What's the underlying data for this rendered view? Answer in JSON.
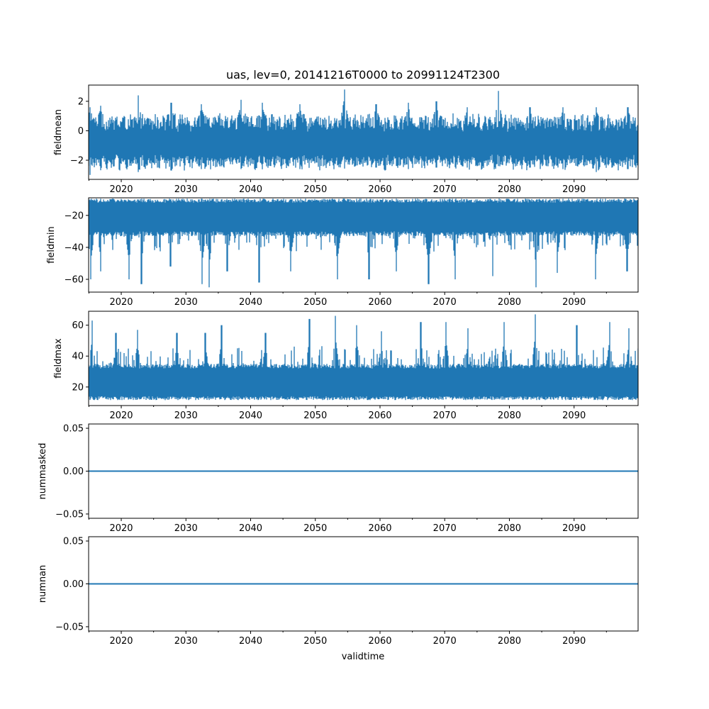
{
  "chart_data": {
    "type": "line",
    "title": "uas, lev=0, 20141216T0000 to 20991124T2300",
    "xlabel": "validtime",
    "series_color": "#1f77b4",
    "x_range": [
      "2014-12-16",
      "2099-11-24"
    ],
    "x_tick_labels": [
      "2020",
      "2030",
      "2040",
      "2050",
      "2060",
      "2070",
      "2080",
      "2090"
    ],
    "panels": [
      {
        "ylabel": "fieldmean",
        "ylim": [
          -3.3,
          3.1
        ],
        "y_ticks": [
          -2,
          0,
          2
        ],
        "y_tick_labels": [
          "−2",
          "0",
          "2"
        ],
        "band": [
          -2.4,
          0.8
        ],
        "seasonal_peaks": [
          {
            "x": 2015.2,
            "y": 1.6,
            "min": -3.0
          },
          {
            "x": 2016.8,
            "y": 1.7,
            "min": -2.4
          },
          {
            "x": 2022.6,
            "y": 2.4,
            "min": -2.8
          },
          {
            "x": 2027.7,
            "y": 1.9,
            "min": -2.7
          },
          {
            "x": 2032.4,
            "y": 1.8,
            "min": -2.6
          },
          {
            "x": 2038.5,
            "y": 2.1,
            "min": -2.6
          },
          {
            "x": 2041.8,
            "y": 1.9,
            "min": -2.6
          },
          {
            "x": 2047.6,
            "y": 1.8,
            "min": -2.6
          },
          {
            "x": 2054.5,
            "y": 2.8,
            "min": -2.4
          },
          {
            "x": 2059.4,
            "y": 1.8,
            "min": -2.5
          },
          {
            "x": 2064.4,
            "y": 1.9,
            "min": -2.6
          },
          {
            "x": 2068.7,
            "y": 2.0,
            "min": -2.5
          },
          {
            "x": 2073.5,
            "y": 1.6,
            "min": -2.5
          },
          {
            "x": 2078.3,
            "y": 2.7,
            "min": -2.4
          },
          {
            "x": 2083.2,
            "y": 1.6,
            "min": -2.5
          },
          {
            "x": 2088.3,
            "y": 1.6,
            "min": -2.6
          },
          {
            "x": 2093.4,
            "y": 1.6,
            "min": -2.8
          },
          {
            "x": 2098.3,
            "y": 1.6,
            "min": -2.6
          }
        ]
      },
      {
        "ylabel": "fieldmin",
        "ylim": [
          -68,
          -9
        ],
        "y_ticks": [
          -60,
          -40,
          -20
        ],
        "y_tick_labels": [
          "−60",
          "−40",
          "−20"
        ],
        "band": [
          -30,
          -12
        ],
        "extremes": [
          {
            "x": 2015.3,
            "y": -60
          },
          {
            "x": 2016.8,
            "y": -55
          },
          {
            "x": 2021.2,
            "y": -60
          },
          {
            "x": 2023.1,
            "y": -63
          },
          {
            "x": 2027.6,
            "y": -52
          },
          {
            "x": 2032.5,
            "y": -63
          },
          {
            "x": 2033.6,
            "y": -65
          },
          {
            "x": 2036.4,
            "y": -55
          },
          {
            "x": 2041.3,
            "y": -62
          },
          {
            "x": 2046.2,
            "y": -55
          },
          {
            "x": 2053.4,
            "y": -60
          },
          {
            "x": 2058.3,
            "y": -60
          },
          {
            "x": 2062.5,
            "y": -55
          },
          {
            "x": 2067.5,
            "y": -63
          },
          {
            "x": 2071.6,
            "y": -60
          },
          {
            "x": 2077.4,
            "y": -58
          },
          {
            "x": 2084.1,
            "y": -65
          },
          {
            "x": 2087.4,
            "y": -56
          },
          {
            "x": 2093.3,
            "y": -60
          },
          {
            "x": 2098.2,
            "y": -55
          }
        ]
      },
      {
        "ylabel": "fieldmax",
        "ylim": [
          8,
          69
        ],
        "y_ticks": [
          20,
          40,
          60
        ],
        "y_tick_labels": [
          "20",
          "40",
          "60"
        ],
        "band": [
          14,
          32
        ],
        "extremes": [
          {
            "x": 2015.5,
            "y": 63
          },
          {
            "x": 2019.2,
            "y": 55
          },
          {
            "x": 2022.5,
            "y": 57
          },
          {
            "x": 2028.6,
            "y": 55
          },
          {
            "x": 2033.0,
            "y": 55
          },
          {
            "x": 2035.5,
            "y": 60
          },
          {
            "x": 2042.3,
            "y": 55
          },
          {
            "x": 2049.1,
            "y": 64
          },
          {
            "x": 2053.1,
            "y": 66
          },
          {
            "x": 2056.4,
            "y": 60
          },
          {
            "x": 2060.2,
            "y": 56
          },
          {
            "x": 2066.3,
            "y": 62
          },
          {
            "x": 2070.2,
            "y": 62
          },
          {
            "x": 2073.6,
            "y": 58
          },
          {
            "x": 2079.2,
            "y": 62
          },
          {
            "x": 2084.0,
            "y": 67
          },
          {
            "x": 2090.4,
            "y": 60
          },
          {
            "x": 2095.5,
            "y": 62
          },
          {
            "x": 2098.5,
            "y": 58
          }
        ]
      },
      {
        "ylabel": "nummasked",
        "ylim": [
          -0.055,
          0.055
        ],
        "y_ticks": [
          -0.05,
          0.0,
          0.05
        ],
        "y_tick_labels": [
          "−0.05",
          "0.00",
          "0.05"
        ],
        "constant": 0.0
      },
      {
        "ylabel": "numnan",
        "ylim": [
          -0.055,
          0.055
        ],
        "y_ticks": [
          -0.05,
          0.0,
          0.05
        ],
        "y_tick_labels": [
          "−0.05",
          "0.00",
          "0.05"
        ],
        "constant": 0.0
      }
    ]
  }
}
